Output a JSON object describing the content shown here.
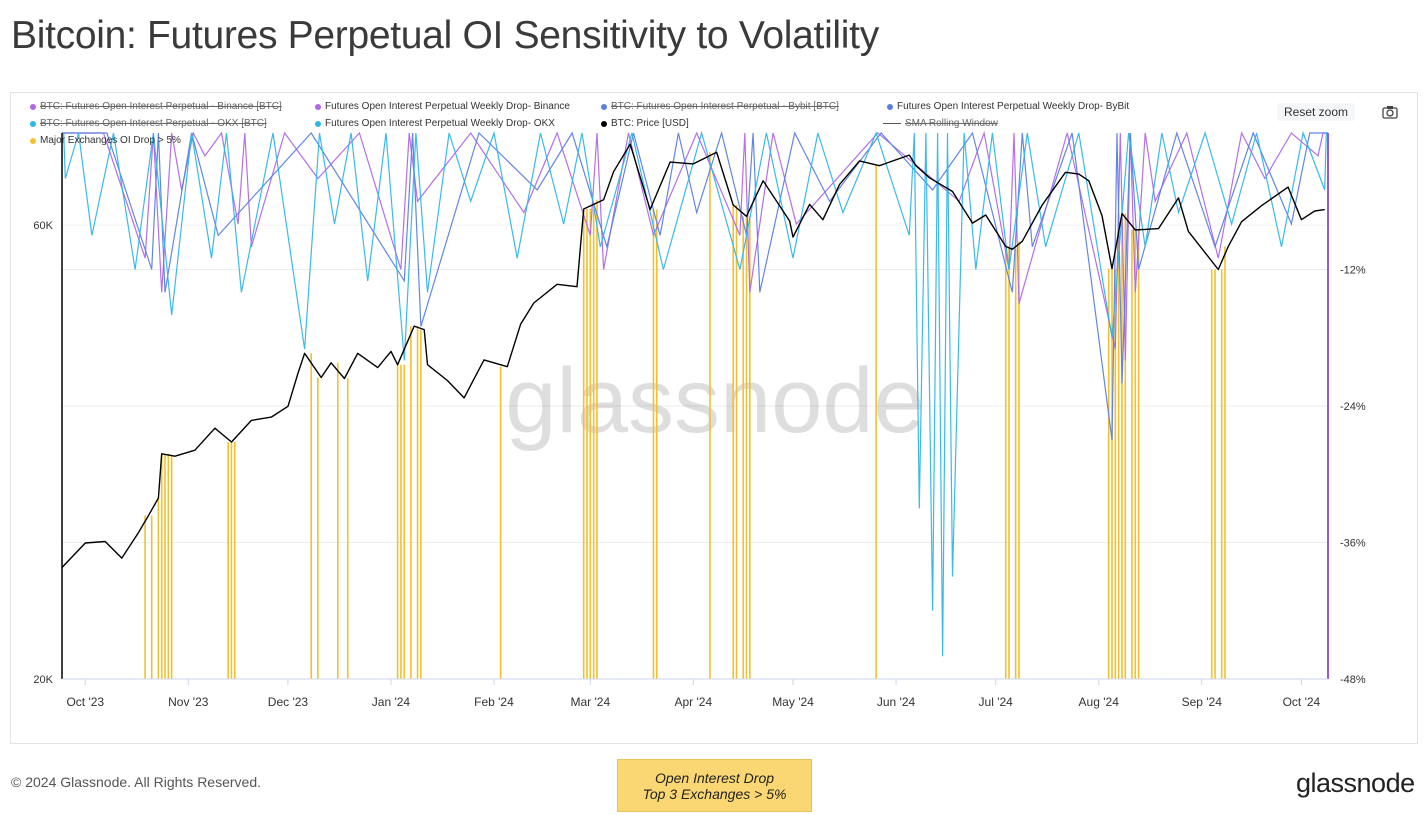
{
  "title": "Bitcoin: Futures Perpetual OI Sensitivity to Volatility",
  "legend": [
    {
      "label": "BTC: Futures Open Interest Perpetual - Binance [BTC]",
      "color": "#b167e8",
      "marker": "dot",
      "hidden": true
    },
    {
      "label": "Futures Open Interest Perpetual Weekly Drop- Binance",
      "color": "#b167e8",
      "marker": "dot",
      "hidden": false
    },
    {
      "label": "BTC: Futures Open Interest Perpetual - Bybit [BTC]",
      "color": "#5b7fe0",
      "marker": "dot",
      "hidden": true
    },
    {
      "label": "Futures Open Interest Perpetual Weekly Drop- ByBit",
      "color": "#5b7fe0",
      "marker": "dot",
      "hidden": false
    },
    {
      "label": "BTC: Futures Open Interest Perpetual - OKX [BTC]",
      "color": "#2fb6e8",
      "marker": "dot",
      "hidden": true
    },
    {
      "label": "Futures Open Interest Perpetual Weekly Drop- OKX",
      "color": "#2fb6e8",
      "marker": "dot",
      "hidden": false
    },
    {
      "label": "BTC: Price [USD]",
      "color": "#000000",
      "marker": "dot",
      "hidden": false
    },
    {
      "label": "SMA Rolling Window",
      "color": "#555555",
      "marker": "line",
      "hidden": true
    },
    {
      "label": "Major Exchanges OI Drop > 5%",
      "color": "#f2c12e",
      "marker": "dot",
      "hidden": false
    }
  ],
  "toolbar": {
    "reset_zoom": "Reset zoom",
    "camera_icon": "camera-icon"
  },
  "footer": {
    "copyright": "© 2024 Glassnode. All Rights Reserved.",
    "brand": "glassnode"
  },
  "watermark": "glassnode",
  "callout": {
    "line1": "Open Interest Drop",
    "line2": "Top 3 Exchanges > 5%"
  },
  "colors": {
    "binance": "#b167e8",
    "bybit": "#5b7fe0",
    "okx": "#2fb6e8",
    "price": "#000000",
    "drop_bars": "#f2c12e",
    "right_axis": "#9b59d0"
  },
  "chart_data": {
    "type": "line",
    "x_ticks": [
      "Oct '23",
      "Nov '23",
      "Dec '23",
      "Jan '24",
      "Feb '24",
      "Mar '24",
      "Apr '24",
      "May '24",
      "Jun '24",
      "Jul '24",
      "Aug '24",
      "Sep '24",
      "Oct '24"
    ],
    "x_range": [
      "2023-09-24",
      "2024-10-09"
    ],
    "y_left": {
      "scale": "log",
      "range": [
        20000,
        75000
      ],
      "ticks": [
        {
          "v": 20000,
          "label": "20K"
        },
        {
          "v": 60000,
          "label": "60K"
        }
      ]
    },
    "y_right": {
      "scale": "linear",
      "range": [
        -48,
        0
      ],
      "ticks": [
        {
          "v": -12,
          "label": "-12%"
        },
        {
          "v": -24,
          "label": "-24%"
        },
        {
          "v": -36,
          "label": "-36%"
        },
        {
          "v": -48,
          "label": "-48%"
        }
      ]
    },
    "grid": true,
    "series": [
      {
        "name": "BTC: Price [USD]",
        "axis": "left",
        "points": [
          [
            "2023-09-24",
            26200
          ],
          [
            "2023-10-01",
            27800
          ],
          [
            "2023-10-07",
            27900
          ],
          [
            "2023-10-12",
            26800
          ],
          [
            "2023-10-17",
            28500
          ],
          [
            "2023-10-20",
            29700
          ],
          [
            "2023-10-23",
            31000
          ],
          [
            "2023-10-24",
            34500
          ],
          [
            "2023-10-28",
            34300
          ],
          [
            "2023-11-03",
            34800
          ],
          [
            "2023-11-09",
            36700
          ],
          [
            "2023-11-14",
            35500
          ],
          [
            "2023-11-20",
            37400
          ],
          [
            "2023-11-26",
            37700
          ],
          [
            "2023-12-01",
            38700
          ],
          [
            "2023-12-04",
            41900
          ],
          [
            "2023-12-06",
            44000
          ],
          [
            "2023-12-11",
            41500
          ],
          [
            "2023-12-14",
            43000
          ],
          [
            "2023-12-18",
            41400
          ],
          [
            "2023-12-22",
            44000
          ],
          [
            "2023-12-28",
            42500
          ],
          [
            "2024-01-01",
            44200
          ],
          [
            "2024-01-03",
            42800
          ],
          [
            "2024-01-08",
            47000
          ],
          [
            "2024-01-11",
            46600
          ],
          [
            "2024-01-12",
            42800
          ],
          [
            "2024-01-18",
            41200
          ],
          [
            "2024-01-23",
            39500
          ],
          [
            "2024-01-29",
            43300
          ],
          [
            "2024-02-05",
            42600
          ],
          [
            "2024-02-09",
            47200
          ],
          [
            "2024-02-13",
            49700
          ],
          [
            "2024-02-20",
            52000
          ],
          [
            "2024-02-26",
            51700
          ],
          [
            "2024-02-28",
            62400
          ],
          [
            "2024-03-05",
            63800
          ],
          [
            "2024-03-08",
            68300
          ],
          [
            "2024-03-13",
            73000
          ],
          [
            "2024-03-19",
            62300
          ],
          [
            "2024-03-25",
            69900
          ],
          [
            "2024-04-01",
            69600
          ],
          [
            "2024-04-08",
            71600
          ],
          [
            "2024-04-13",
            63000
          ],
          [
            "2024-04-17",
            61300
          ],
          [
            "2024-04-22",
            66800
          ],
          [
            "2024-04-30",
            60600
          ],
          [
            "2024-05-01",
            58300
          ],
          [
            "2024-05-06",
            63100
          ],
          [
            "2024-05-10",
            60800
          ],
          [
            "2024-05-15",
            66200
          ],
          [
            "2024-05-21",
            70100
          ],
          [
            "2024-05-27",
            69300
          ],
          [
            "2024-06-05",
            71100
          ],
          [
            "2024-06-07",
            69300
          ],
          [
            "2024-06-11",
            67300
          ],
          [
            "2024-06-18",
            65100
          ],
          [
            "2024-06-24",
            60300
          ],
          [
            "2024-06-28",
            61500
          ],
          [
            "2024-07-04",
            57000
          ],
          [
            "2024-07-06",
            56600
          ],
          [
            "2024-07-09",
            57700
          ],
          [
            "2024-07-15",
            63000
          ],
          [
            "2024-07-22",
            68200
          ],
          [
            "2024-07-26",
            67900
          ],
          [
            "2024-07-29",
            66800
          ],
          [
            "2024-08-02",
            61400
          ],
          [
            "2024-08-05",
            54000
          ],
          [
            "2024-08-08",
            61700
          ],
          [
            "2024-08-12",
            59300
          ],
          [
            "2024-08-19",
            59500
          ],
          [
            "2024-08-25",
            64100
          ],
          [
            "2024-08-28",
            59100
          ],
          [
            "2024-09-06",
            53900
          ],
          [
            "2024-09-09",
            57000
          ],
          [
            "2024-09-13",
            60500
          ],
          [
            "2024-09-19",
            62900
          ],
          [
            "2024-09-27",
            65800
          ],
          [
            "2024-10-01",
            60800
          ],
          [
            "2024-10-05",
            62100
          ],
          [
            "2024-10-08",
            62300
          ]
        ]
      },
      {
        "name": "Futures Open Interest Perpetual Weekly Drop- Binance",
        "axis": "right",
        "points": [
          [
            "2023-10-19",
            -11
          ],
          [
            "2023-10-24",
            -14
          ],
          [
            "2023-10-30",
            -5
          ],
          [
            "2023-11-06",
            -2
          ],
          [
            "2023-11-16",
            -8
          ],
          [
            "2023-11-20",
            -10
          ],
          [
            "2023-12-10",
            -4
          ],
          [
            "2024-01-04",
            -12
          ],
          [
            "2024-01-09",
            -6
          ],
          [
            "2024-02-10",
            -7
          ],
          [
            "2024-03-01",
            -9
          ],
          [
            "2024-03-05",
            -12
          ],
          [
            "2024-03-20",
            -9
          ],
          [
            "2024-04-15",
            -9
          ],
          [
            "2024-04-18",
            -14
          ],
          [
            "2024-05-02",
            -8
          ],
          [
            "2024-06-20",
            -6
          ],
          [
            "2024-07-05",
            -12
          ],
          [
            "2024-07-08",
            -15
          ],
          [
            "2024-08-06",
            -19
          ],
          [
            "2024-08-09",
            -20
          ],
          [
            "2024-08-12",
            -14
          ],
          [
            "2024-08-18",
            -6
          ],
          [
            "2024-09-06",
            -11
          ],
          [
            "2024-09-20",
            -4
          ],
          [
            "2024-10-06",
            -2
          ]
        ]
      },
      {
        "name": "Futures Open Interest Perpetual Weekly Drop- ByBit",
        "axis": "right",
        "points": [
          [
            "2023-10-21",
            -12
          ],
          [
            "2023-10-25",
            -14
          ],
          [
            "2023-11-10",
            -9
          ],
          [
            "2024-01-05",
            -13
          ],
          [
            "2024-01-10",
            -17
          ],
          [
            "2024-02-14",
            -5
          ],
          [
            "2024-03-06",
            -10
          ],
          [
            "2024-03-22",
            -9
          ],
          [
            "2024-04-02",
            -7
          ],
          [
            "2024-04-17",
            -9
          ],
          [
            "2024-04-21",
            -14
          ],
          [
            "2024-05-12",
            -6
          ],
          [
            "2024-06-12",
            -5
          ],
          [
            "2024-07-06",
            -14
          ],
          [
            "2024-07-12",
            -10
          ],
          [
            "2024-08-05",
            -27
          ],
          [
            "2024-08-08",
            -22
          ],
          [
            "2024-08-13",
            -12
          ],
          [
            "2024-09-05",
            -10
          ],
          [
            "2024-09-28",
            -8
          ]
        ]
      },
      {
        "name": "Futures Open Interest Perpetual Weekly Drop- OKX",
        "axis": "right",
        "points": [
          [
            "2023-09-25",
            -4
          ],
          [
            "2023-10-03",
            -9
          ],
          [
            "2023-10-16",
            -12
          ],
          [
            "2023-10-27",
            -16
          ],
          [
            "2023-11-08",
            -11
          ],
          [
            "2023-11-17",
            -14
          ],
          [
            "2023-12-06",
            -19
          ],
          [
            "2023-12-15",
            -8
          ],
          [
            "2023-12-25",
            -13
          ],
          [
            "2024-01-05",
            -20
          ],
          [
            "2024-01-12",
            -14
          ],
          [
            "2024-01-25",
            -6
          ],
          [
            "2024-02-08",
            -11
          ],
          [
            "2024-02-22",
            -8
          ],
          [
            "2024-03-04",
            -10
          ],
          [
            "2024-03-23",
            -12
          ],
          [
            "2024-04-15",
            -12
          ],
          [
            "2024-05-01",
            -11
          ],
          [
            "2024-05-16",
            -7
          ],
          [
            "2024-06-05",
            -9
          ],
          [
            "2024-06-08",
            -33
          ],
          [
            "2024-06-12",
            -42
          ],
          [
            "2024-06-15",
            -46
          ],
          [
            "2024-06-18",
            -39
          ],
          [
            "2024-06-25",
            -12
          ],
          [
            "2024-07-05",
            -12
          ],
          [
            "2024-07-16",
            -10
          ],
          [
            "2024-08-05",
            -18
          ],
          [
            "2024-08-15",
            -10
          ],
          [
            "2024-08-25",
            -7
          ],
          [
            "2024-09-10",
            -8
          ],
          [
            "2024-09-25",
            -10
          ],
          [
            "2024-10-08",
            -5
          ]
        ]
      }
    ],
    "drop_events_label": "Major Exchanges OI Drop > 5%",
    "drop_events": [
      "2023-10-19",
      "2023-10-21",
      "2023-10-23",
      "2023-10-24",
      "2023-10-25",
      "2023-10-26",
      "2023-10-27",
      "2023-11-13",
      "2023-11-14",
      "2023-11-15",
      "2023-12-08",
      "2023-12-10",
      "2023-12-16",
      "2023-12-19",
      "2024-01-03",
      "2024-01-04",
      "2024-01-05",
      "2024-01-07",
      "2024-01-09",
      "2024-01-10",
      "2024-02-03",
      "2024-02-28",
      "2024-02-29",
      "2024-03-01",
      "2024-03-02",
      "2024-03-03",
      "2024-03-20",
      "2024-03-21",
      "2024-04-06",
      "2024-04-13",
      "2024-04-14",
      "2024-04-16",
      "2024-04-17",
      "2024-04-18",
      "2024-05-26",
      "2024-07-04",
      "2024-07-05",
      "2024-07-07",
      "2024-07-08",
      "2024-08-04",
      "2024-08-05",
      "2024-08-06",
      "2024-08-07",
      "2024-08-08",
      "2024-08-09",
      "2024-08-11",
      "2024-08-12",
      "2024-08-13",
      "2024-09-04",
      "2024-09-05",
      "2024-09-07",
      "2024-09-08"
    ]
  }
}
